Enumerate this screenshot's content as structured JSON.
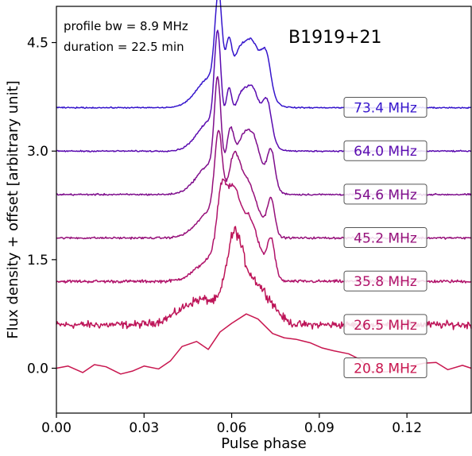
{
  "chart_data": {
    "type": "line",
    "title": "B1919+21",
    "annotations": [
      "profile bw = 8.9 MHz",
      "duration = 22.5 min"
    ],
    "xlabel": "Pulse phase",
    "ylabel": "Flux density + offset [arbitrary unit]",
    "xlim": [
      0.0,
      0.142
    ],
    "ylim": [
      -0.62,
      5.0
    ],
    "xticks": [
      0.0,
      0.03,
      0.06,
      0.09,
      0.12
    ],
    "xtick_labels": [
      "0.00",
      "0.03",
      "0.06",
      "0.09",
      "0.12"
    ],
    "yticks": [
      0.0,
      1.5,
      3.0,
      4.5
    ],
    "ytick_labels": [
      "0.0",
      "1.5",
      "3.0",
      "4.5"
    ],
    "grid": false,
    "series": [
      {
        "name": "20.8 MHz",
        "color": "#c8164f",
        "x": [
          0.0,
          0.004,
          0.009,
          0.013,
          0.017,
          0.022,
          0.026,
          0.03,
          0.035,
          0.039,
          0.043,
          0.048,
          0.052,
          0.056,
          0.06,
          0.065,
          0.069,
          0.074,
          0.078,
          0.082,
          0.087,
          0.091,
          0.095,
          0.1,
          0.104,
          0.108,
          0.113,
          0.117,
          0.121,
          0.126,
          0.13,
          0.134,
          0.139,
          0.142
        ],
        "values": [
          0.0,
          0.03,
          -0.06,
          0.05,
          0.02,
          -0.08,
          -0.04,
          0.03,
          -0.01,
          0.1,
          0.3,
          0.37,
          0.26,
          0.5,
          0.62,
          0.75,
          0.68,
          0.48,
          0.42,
          0.4,
          0.35,
          0.28,
          0.24,
          0.2,
          0.12,
          -0.05,
          -0.05,
          -0.03,
          0.03,
          0.07,
          0.08,
          -0.02,
          0.04,
          0.0
        ]
      },
      {
        "name": "26.5 MHz",
        "color": "#bd1458",
        "offset": 0.6,
        "noise": 0.045,
        "gaussians": [
          [
            0.05,
            0.35,
            0.0075
          ],
          [
            0.0608,
            1.0,
            0.0026
          ],
          [
            0.066,
            0.48,
            0.0035
          ],
          [
            0.072,
            0.3,
            0.0038
          ]
        ]
      },
      {
        "name": "35.8 MHz",
        "color": "#b0126a",
        "offset": 1.2,
        "noise": 0.018,
        "gaussians": [
          [
            0.0565,
            0.88,
            0.0016
          ],
          [
            0.0605,
            1.0,
            0.0022
          ],
          [
            0.0655,
            0.55,
            0.0026
          ],
          [
            0.0735,
            0.5,
            0.0013
          ],
          [
            0.054,
            0.33,
            0.0055
          ],
          [
            0.068,
            0.35,
            0.0035
          ]
        ]
      },
      {
        "name": "45.2 MHz",
        "color": "#96107a",
        "offset": 1.8,
        "noise": 0.012,
        "gaussians": [
          [
            0.0555,
            1.08,
            0.0013
          ],
          [
            0.0608,
            0.85,
            0.002
          ],
          [
            0.065,
            0.5,
            0.0025
          ],
          [
            0.0735,
            0.48,
            0.0012
          ],
          [
            0.054,
            0.4,
            0.0052
          ],
          [
            0.068,
            0.3,
            0.0035
          ]
        ]
      },
      {
        "name": "54.6 MHz",
        "color": "#7e0d8c",
        "offset": 2.4,
        "noise": 0.01,
        "gaussians": [
          [
            0.0552,
            1.25,
            0.0011
          ],
          [
            0.0595,
            0.6,
            0.0012
          ],
          [
            0.0632,
            0.52,
            0.0022
          ],
          [
            0.0672,
            0.46,
            0.0022
          ],
          [
            0.0735,
            0.5,
            0.0013
          ],
          [
            0.053,
            0.42,
            0.0048
          ],
          [
            0.0682,
            0.3,
            0.004
          ]
        ]
      },
      {
        "name": "64.0 MHz",
        "color": "#5a0bb0",
        "offset": 3.0,
        "noise": 0.008,
        "gaussians": [
          [
            0.0552,
            1.3,
            0.0011
          ],
          [
            0.059,
            0.55,
            0.001
          ],
          [
            0.0628,
            0.55,
            0.0022
          ],
          [
            0.0672,
            0.52,
            0.0022
          ],
          [
            0.0722,
            0.5,
            0.0015
          ],
          [
            0.053,
            0.42,
            0.0046
          ],
          [
            0.068,
            0.3,
            0.004
          ]
        ]
      },
      {
        "name": "73.4 MHz",
        "color": "#3515cc",
        "offset": 3.6,
        "noise": 0.007,
        "gaussians": [
          [
            0.0555,
            1.25,
            0.0012
          ],
          [
            0.059,
            0.58,
            0.001
          ],
          [
            0.0625,
            0.55,
            0.0022
          ],
          [
            0.067,
            0.55,
            0.0023
          ],
          [
            0.0718,
            0.52,
            0.0016
          ],
          [
            0.053,
            0.42,
            0.0048
          ],
          [
            0.068,
            0.32,
            0.0042
          ]
        ]
      }
    ]
  }
}
